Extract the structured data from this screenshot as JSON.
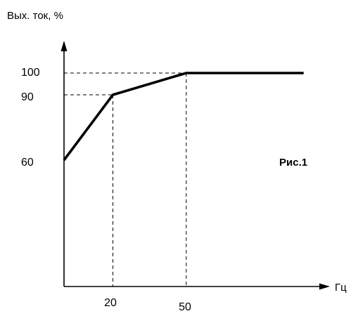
{
  "chart_data": {
    "type": "line",
    "ylabel": "Вых. ток, %",
    "xlabel": "Гц",
    "annotation": "Рис.1",
    "x_ticks": [
      "20",
      "50"
    ],
    "y_ticks": [
      "60",
      "90",
      "100"
    ],
    "series": [
      {
        "x": [
          0,
          20,
          50,
          98
        ],
        "y": [
          60,
          90,
          100,
          100
        ]
      }
    ],
    "reference_points": [
      {
        "x": 20,
        "y": 90
      },
      {
        "x": 50,
        "y": 100
      }
    ],
    "grid": false,
    "colors": {
      "line": "#000000",
      "axes": "#000000",
      "background": "#ffffff"
    }
  }
}
